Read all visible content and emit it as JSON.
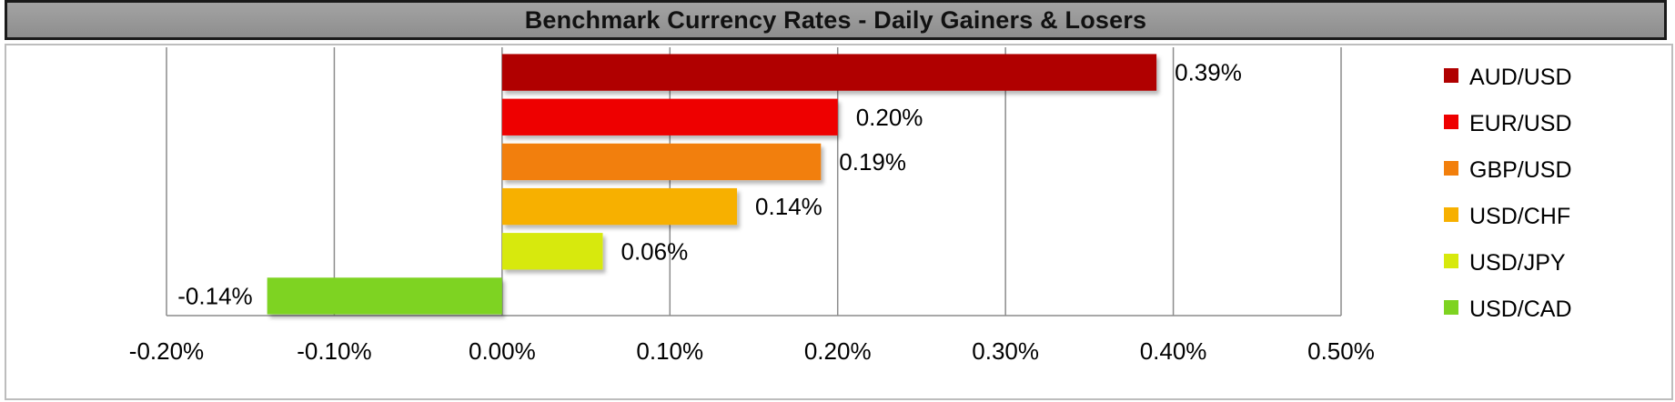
{
  "chart_data": {
    "type": "bar",
    "orientation": "horizontal",
    "title": "Benchmark Currency Rates - Daily Gainers & Losers",
    "categories": [
      "AUD/USD",
      "EUR/USD",
      "GBP/USD",
      "USD/CHF",
      "USD/JPY",
      "USD/CAD"
    ],
    "values": [
      0.39,
      0.2,
      0.19,
      0.14,
      0.06,
      -0.14
    ],
    "data_labels": [
      "0.39%",
      "0.20%",
      "0.19%",
      "0.14%",
      "0.06%",
      "-0.14%"
    ],
    "colors": [
      "#b00000",
      "#ee0000",
      "#f27f0c",
      "#f7b000",
      "#d7e90d",
      "#7ed321"
    ],
    "xlim": [
      -0.2,
      0.5
    ],
    "x_ticks": [
      -0.2,
      -0.1,
      0.0,
      0.1,
      0.2,
      0.3,
      0.4,
      0.5
    ],
    "x_tick_labels": [
      "-0.20%",
      "-0.10%",
      "0.00%",
      "0.10%",
      "0.20%",
      "0.30%",
      "0.40%",
      "0.50%"
    ],
    "grid": "vertical",
    "legend": {
      "position": "right",
      "entries": [
        "AUD/USD",
        "EUR/USD",
        "GBP/USD",
        "USD/CHF",
        "USD/JPY",
        "USD/CAD"
      ]
    },
    "xlabel": "",
    "ylabel": ""
  }
}
